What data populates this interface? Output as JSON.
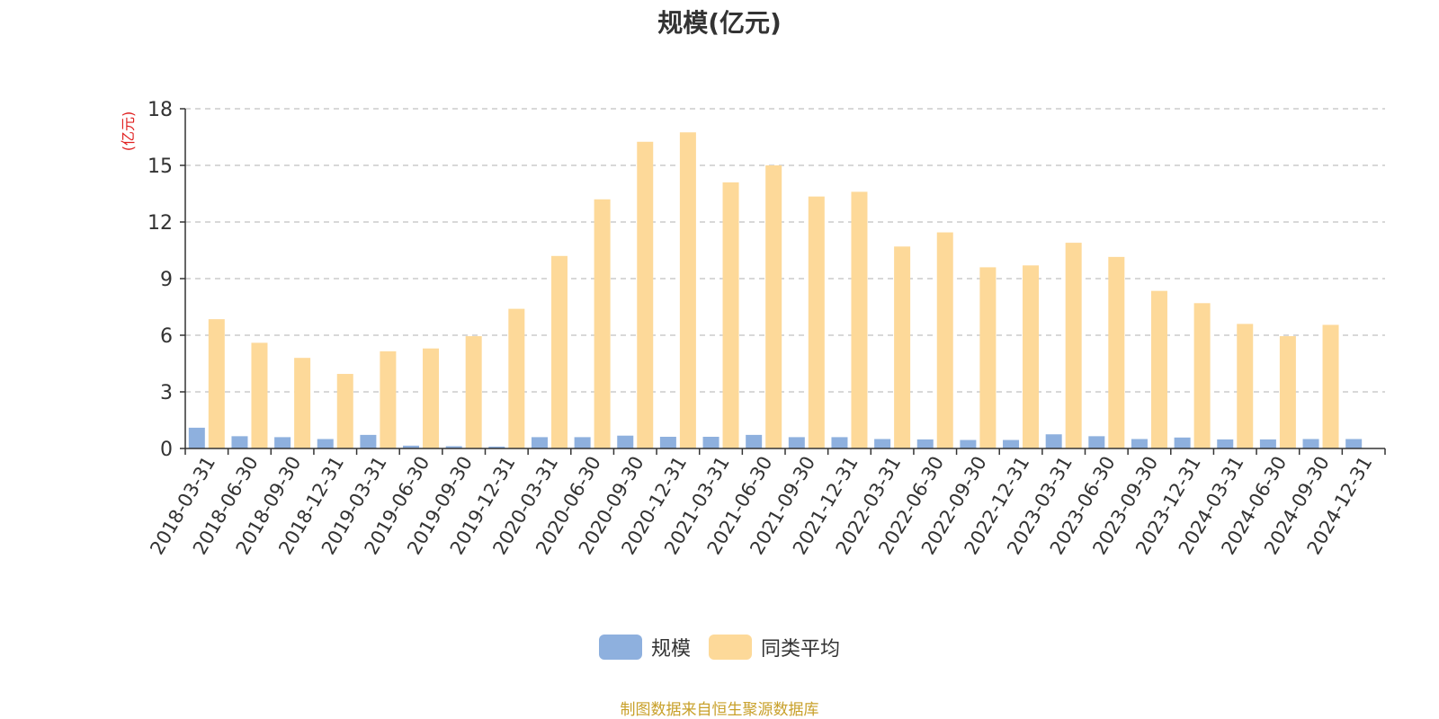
{
  "chart_data": {
    "type": "bar",
    "title": "规模(亿元)",
    "ylabel": "(亿元)",
    "ylim": [
      0,
      18
    ],
    "yticks": [
      0,
      3,
      6,
      9,
      12,
      15,
      18
    ],
    "grid": true,
    "legend_position": "bottom",
    "categories": [
      "2018-03-31",
      "2018-06-30",
      "2018-09-30",
      "2018-12-31",
      "2019-03-31",
      "2019-06-30",
      "2019-09-30",
      "2019-12-31",
      "2020-03-31",
      "2020-06-30",
      "2020-09-30",
      "2020-12-31",
      "2021-03-31",
      "2021-06-30",
      "2021-09-30",
      "2021-12-31",
      "2022-03-31",
      "2022-06-30",
      "2022-09-30",
      "2022-12-31",
      "2023-03-31",
      "2023-06-30",
      "2023-09-30",
      "2023-12-31",
      "2024-03-31",
      "2024-06-30",
      "2024-09-30",
      "2024-12-31"
    ],
    "series": [
      {
        "name": "规模",
        "color": "#8eb0de",
        "values": [
          1.1,
          0.65,
          0.6,
          0.5,
          0.72,
          0.15,
          0.12,
          0.1,
          0.6,
          0.6,
          0.68,
          0.62,
          0.62,
          0.72,
          0.6,
          0.6,
          0.5,
          0.48,
          0.45,
          0.45,
          0.75,
          0.65,
          0.5,
          0.58,
          0.48,
          0.48,
          0.5,
          0.5
        ]
      },
      {
        "name": "同类平均",
        "color": "#fdd999",
        "values": [
          6.85,
          5.6,
          4.8,
          3.95,
          5.15,
          5.3,
          5.95,
          7.4,
          10.2,
          13.2,
          16.25,
          16.75,
          14.1,
          15.0,
          13.35,
          13.6,
          10.7,
          11.45,
          9.6,
          9.7,
          10.9,
          10.15,
          8.35,
          7.7,
          6.6,
          5.95,
          6.55,
          null
        ]
      }
    ]
  },
  "source_note": "制图数据来自恒生聚源数据库"
}
